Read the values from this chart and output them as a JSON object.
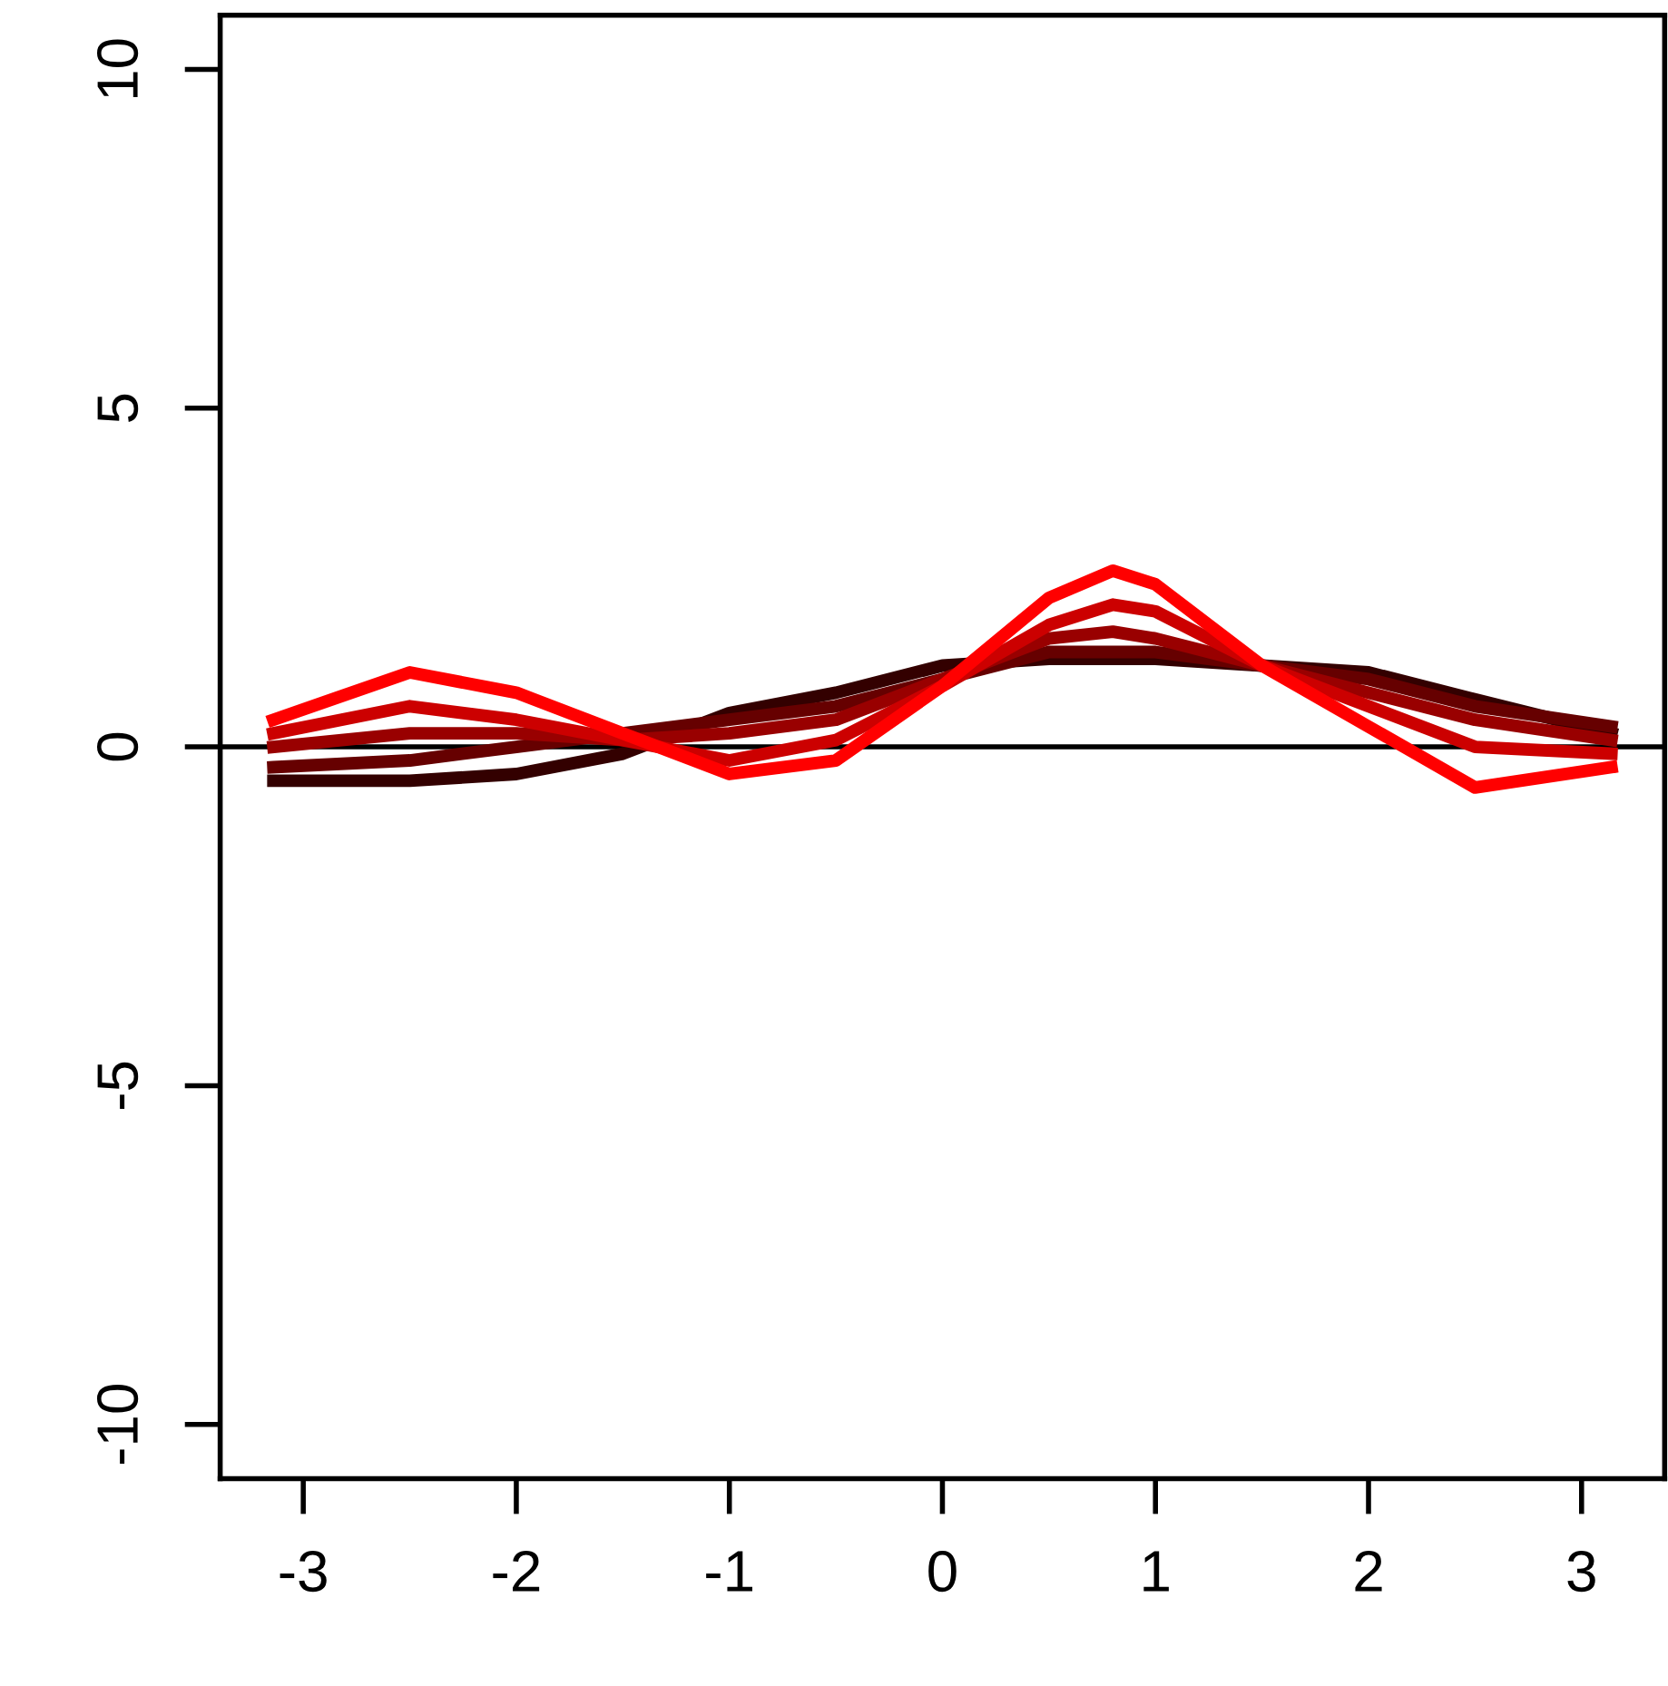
{
  "chart_data": {
    "type": "line",
    "x": [
      -3.14,
      -2.5,
      -2,
      -1.5,
      -1,
      -0.5,
      0,
      0.5,
      0.8,
      1,
      1.5,
      2,
      2.5,
      3.14
    ],
    "series": [
      {
        "color": "#330000",
        "values": [
          -0.5,
          -0.5,
          -0.4,
          -0.1,
          0.5,
          0.8,
          1.2,
          1.3,
          1.3,
          1.3,
          1.2,
          1.1,
          0.7,
          0.2
        ]
      },
      {
        "color": "#660000",
        "values": [
          -0.3,
          -0.2,
          0,
          0.2,
          0.4,
          0.6,
          1.0,
          1.4,
          1.4,
          1.4,
          1.2,
          1.0,
          0.6,
          0.3
        ]
      },
      {
        "color": "#990000",
        "values": [
          0,
          0.2,
          0.2,
          0.1,
          0.2,
          0.4,
          1.0,
          1.6,
          1.7,
          1.6,
          1.2,
          0.8,
          0.4,
          0.1
        ]
      },
      {
        "color": "#cc0000",
        "values": [
          0.2,
          0.6,
          0.4,
          0.1,
          -0.2,
          0.1,
          0.9,
          1.8,
          2.1,
          2.0,
          1.2,
          0.6,
          0,
          -0.1
        ]
      },
      {
        "color": "#ff0000",
        "values": [
          0.4,
          1.1,
          0.8,
          0.2,
          -0.4,
          -0.2,
          0.9,
          2.2,
          2.6,
          2.4,
          1.2,
          0.3,
          -0.6,
          -0.3
        ]
      }
    ],
    "ref_lines": [
      {
        "axis": "y",
        "value": 0,
        "color": "#000000"
      }
    ],
    "xlim": [
      -3.39,
      3.39
    ],
    "ylim": [
      -10.8,
      10.8
    ],
    "xticks": [
      -3,
      -2,
      -1,
      0,
      1,
      2,
      3
    ],
    "yticks": [
      -10,
      -5,
      0,
      5,
      10
    ],
    "grid": false,
    "legend": false,
    "marker": "none",
    "line_style": "solid"
  }
}
